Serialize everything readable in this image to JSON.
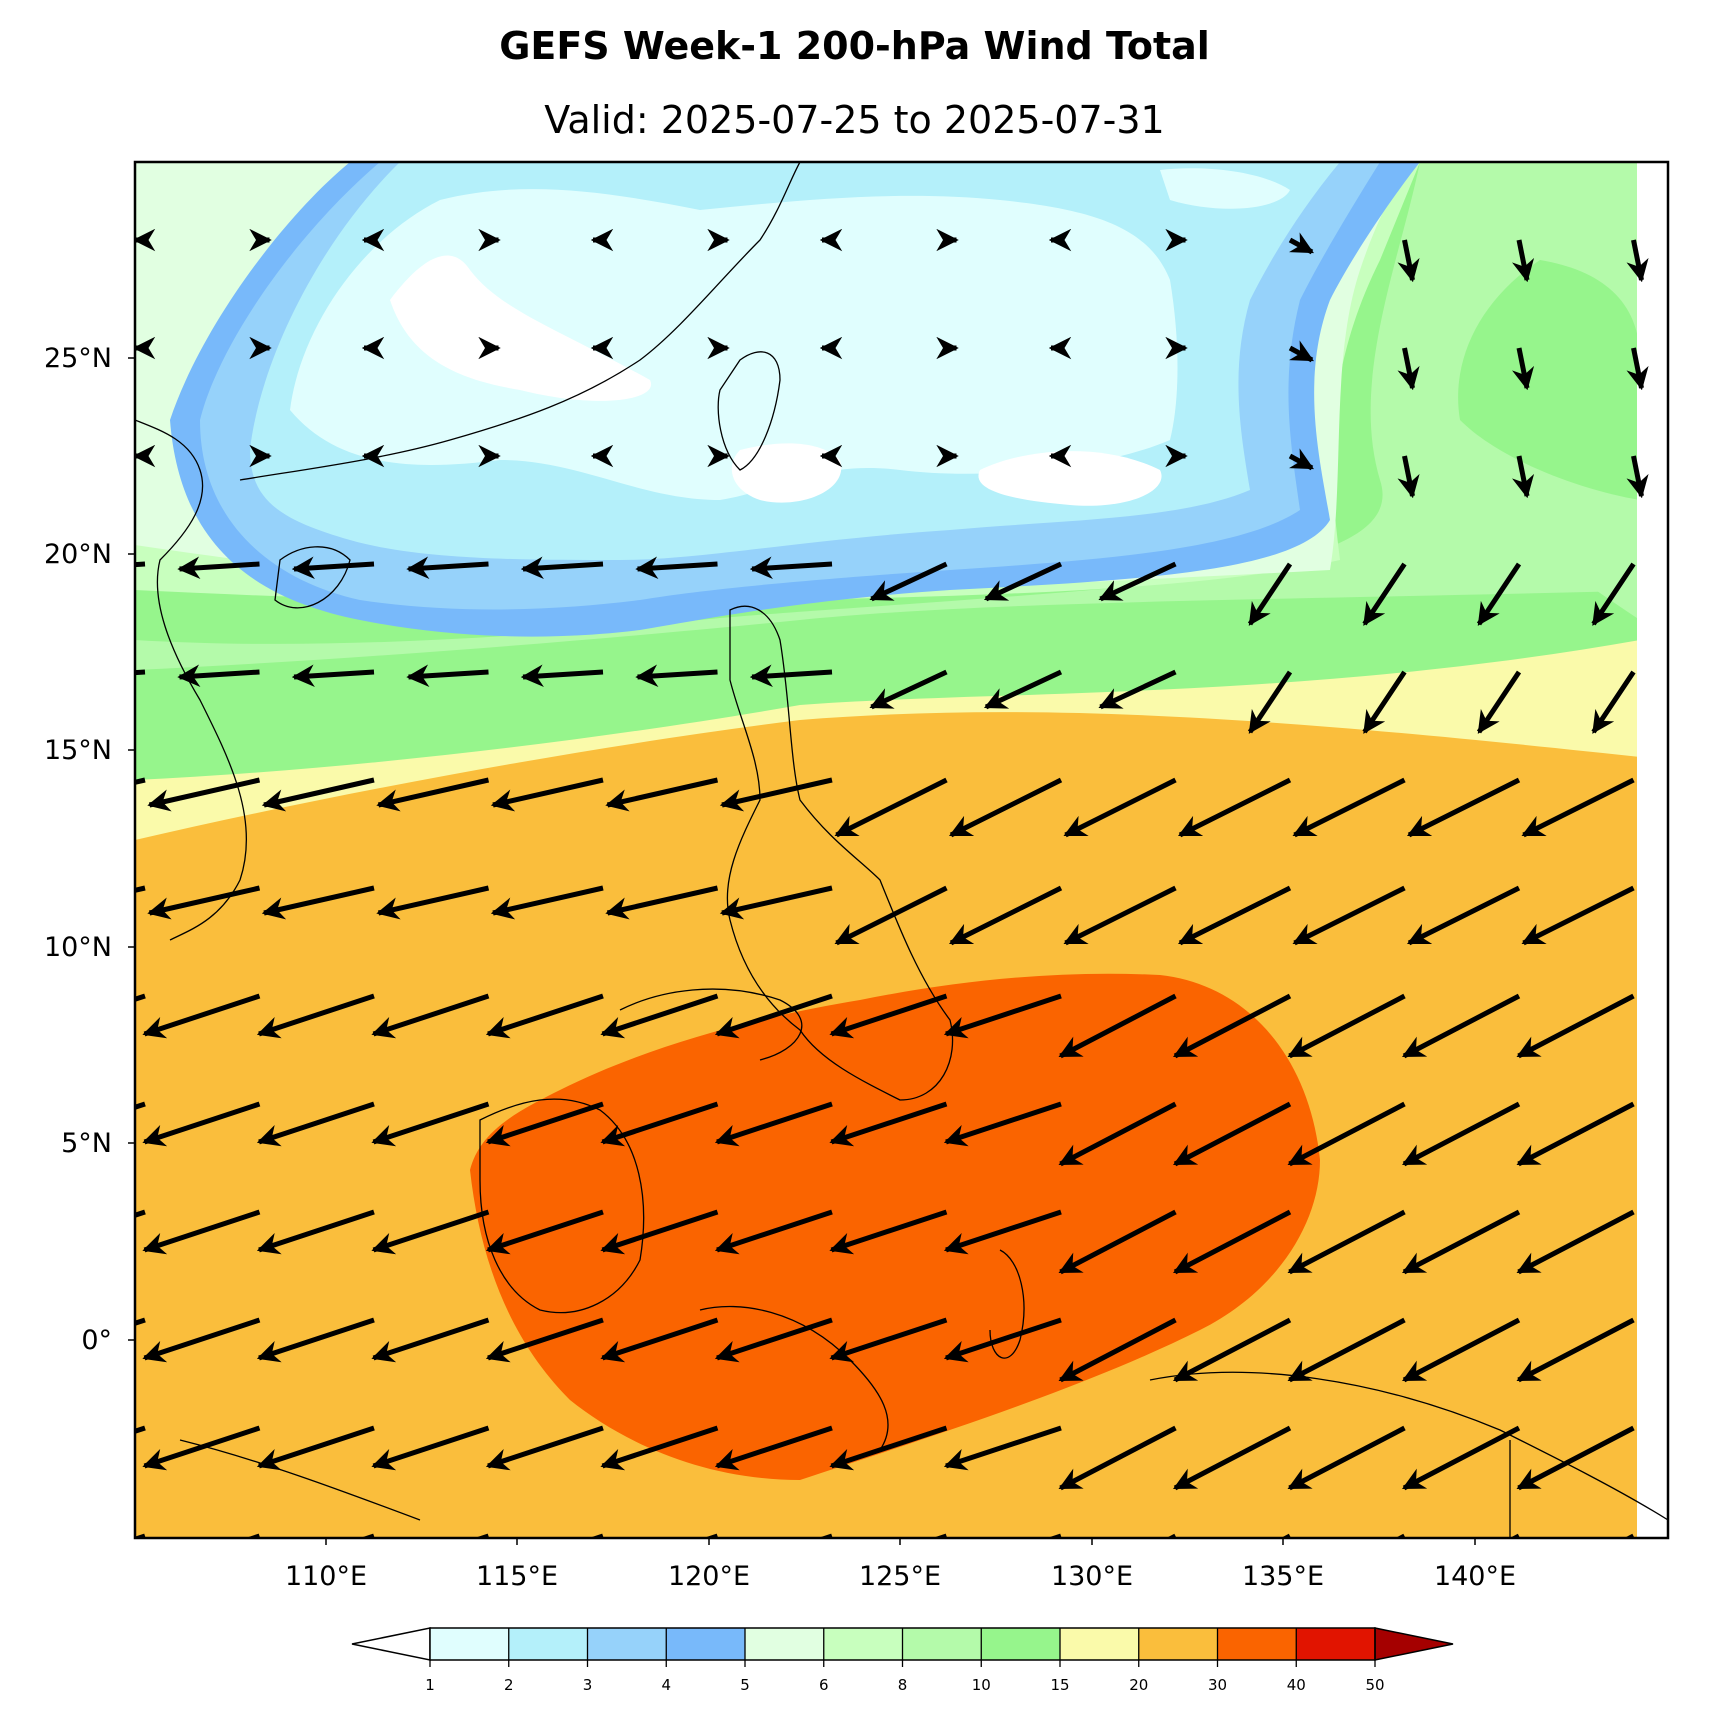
{
  "title": "GEFS Week-1 200-hPa Wind Total",
  "subtitle": "Valid: 2025-07-25 to 2025-07-31",
  "map": {
    "lon_range": [
      105.5,
      145.5
    ],
    "lat_range": [
      -5,
      30
    ],
    "lat_labels": [
      "25°N",
      "20°N",
      "15°N",
      "10°N",
      "5°N",
      "0°"
    ],
    "lon_labels": [
      "110°E",
      "115°E",
      "120°E",
      "125°E",
      "130°E",
      "135°E",
      "140°E"
    ],
    "field": "200-hPa wind speed (m/s) with wind vectors"
  },
  "colorbar": {
    "ticks": [
      "1",
      "2",
      "3",
      "4",
      "5",
      "6",
      "8",
      "10",
      "15",
      "20",
      "30",
      "40",
      "50"
    ],
    "colors": [
      "#e0fefe",
      "#b4f0fa",
      "#96d2fa",
      "#78b9fa",
      "#e1ffe1",
      "#c8ffbe",
      "#b4faaa",
      "#96f58c",
      "#fafaaa",
      "#fabe3c",
      "#fa6400",
      "#e11400",
      "#a50000"
    ],
    "under_color": "#ffffff",
    "over_color": "#a50000"
  }
}
